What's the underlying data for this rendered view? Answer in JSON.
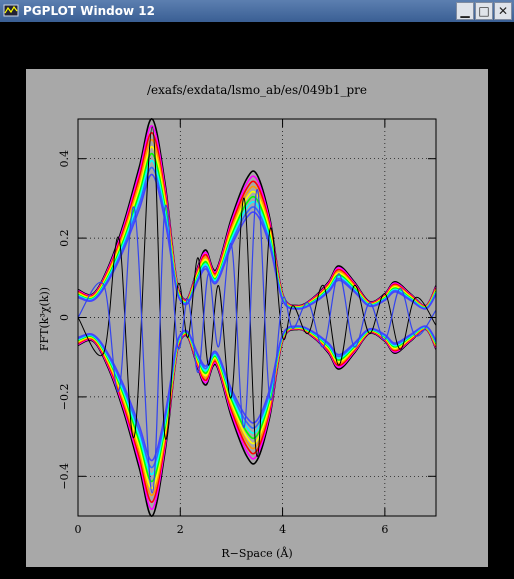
{
  "window": {
    "title": "PGPLOT Window 12",
    "minimize": "▁",
    "maximize": "□",
    "close": "✕"
  },
  "chart_data": {
    "type": "line",
    "title": "/exafs/exdata/lsmo_ab/es/049b1_pre",
    "xlabel": "R−Space (Å)",
    "ylabel": "FFT(k³χ(k))",
    "xlim": [
      0,
      7
    ],
    "ylim": [
      -0.5,
      0.5
    ],
    "xticks": [
      0,
      2,
      4,
      6
    ],
    "xtick_labels": [
      "0",
      "2",
      "4",
      "6"
    ],
    "yticks": [
      -0.4,
      -0.2,
      0,
      0.2,
      0.4
    ],
    "ytick_labels": [
      "−0.4",
      "−0.2",
      "0",
      "0.2",
      "0.4"
    ],
    "grid": true,
    "series_note": "overlaid rainbow spectra",
    "envelope_colors": [
      "#000000",
      "#ff00ff",
      "#ff0000",
      "#ff9900",
      "#ffff00",
      "#00ff00",
      "#00ffff",
      "#3366ff",
      "#4444ff"
    ],
    "envelope_points": [
      {
        "x": 0.0,
        "y": 0.07
      },
      {
        "x": 0.3,
        "y": 0.06
      },
      {
        "x": 0.6,
        "y": 0.13
      },
      {
        "x": 0.9,
        "y": 0.24
      },
      {
        "x": 1.2,
        "y": 0.38
      },
      {
        "x": 1.45,
        "y": 0.5
      },
      {
        "x": 1.7,
        "y": 0.34
      },
      {
        "x": 1.9,
        "y": 0.12
      },
      {
        "x": 2.0,
        "y": 0.06
      },
      {
        "x": 2.15,
        "y": 0.05
      },
      {
        "x": 2.35,
        "y": 0.13
      },
      {
        "x": 2.5,
        "y": 0.17
      },
      {
        "x": 2.7,
        "y": 0.12
      },
      {
        "x": 3.0,
        "y": 0.25
      },
      {
        "x": 3.3,
        "y": 0.35
      },
      {
        "x": 3.5,
        "y": 0.36
      },
      {
        "x": 3.75,
        "y": 0.25
      },
      {
        "x": 4.0,
        "y": 0.06
      },
      {
        "x": 4.3,
        "y": 0.03
      },
      {
        "x": 4.6,
        "y": 0.05
      },
      {
        "x": 4.9,
        "y": 0.09
      },
      {
        "x": 5.1,
        "y": 0.13
      },
      {
        "x": 5.4,
        "y": 0.09
      },
      {
        "x": 5.7,
        "y": 0.04
      },
      {
        "x": 6.0,
        "y": 0.06
      },
      {
        "x": 6.2,
        "y": 0.09
      },
      {
        "x": 6.5,
        "y": 0.06
      },
      {
        "x": 6.8,
        "y": 0.03
      },
      {
        "x": 7.0,
        "y": 0.08
      }
    ],
    "real_part_points": [
      {
        "x": 0.0,
        "y": 0.0
      },
      {
        "x": 0.5,
        "y": -0.09
      },
      {
        "x": 0.8,
        "y": 0.2
      },
      {
        "x": 1.1,
        "y": -0.3
      },
      {
        "x": 1.45,
        "y": 0.48
      },
      {
        "x": 1.7,
        "y": -0.3
      },
      {
        "x": 1.95,
        "y": 0.08
      },
      {
        "x": 2.15,
        "y": -0.05
      },
      {
        "x": 2.35,
        "y": 0.15
      },
      {
        "x": 2.55,
        "y": -0.12
      },
      {
        "x": 2.75,
        "y": 0.08
      },
      {
        "x": 3.0,
        "y": -0.2
      },
      {
        "x": 3.25,
        "y": 0.3
      },
      {
        "x": 3.5,
        "y": -0.35
      },
      {
        "x": 3.75,
        "y": 0.22
      },
      {
        "x": 4.0,
        "y": -0.05
      },
      {
        "x": 4.2,
        "y": 0.03
      },
      {
        "x": 4.5,
        "y": -0.04
      },
      {
        "x": 4.8,
        "y": 0.08
      },
      {
        "x": 5.1,
        "y": -0.12
      },
      {
        "x": 5.4,
        "y": 0.08
      },
      {
        "x": 5.7,
        "y": -0.04
      },
      {
        "x": 6.0,
        "y": 0.06
      },
      {
        "x": 6.3,
        "y": -0.08
      },
      {
        "x": 6.6,
        "y": 0.05
      },
      {
        "x": 7.0,
        "y": -0.02
      }
    ]
  }
}
